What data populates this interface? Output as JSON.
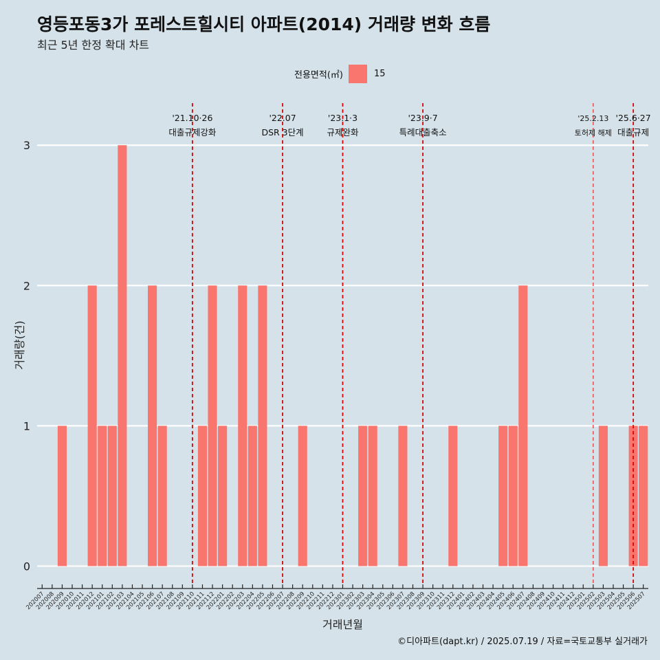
{
  "title": "영등포동3가 포레스트힐시티 아파트(2014) 거래량 변화 흐름",
  "subtitle": "최근 5년 한정 확대 차트",
  "legend": {
    "title": "전용면적(㎡)",
    "label": "15",
    "color": "#f8766d"
  },
  "footer": "©디아파트(dapt.kr) / 2025.07.19 / 자료=국토교통부 실거래가",
  "chart_data": {
    "type": "bar",
    "xlabel": "거래년월",
    "ylabel": "거래량(건)",
    "ylim": [
      -0.14,
      3.3
    ],
    "yticks": [
      0,
      1,
      2,
      3
    ],
    "grid": true,
    "legend_position": "top",
    "bar_color": "#f8766d",
    "categories": [
      "202007",
      "202008",
      "202009",
      "202010",
      "202011",
      "202012",
      "202101",
      "202102",
      "202103",
      "202104",
      "202105",
      "202106",
      "202107",
      "202108",
      "202109",
      "202110",
      "202111",
      "202112",
      "202201",
      "202202",
      "202203",
      "202204",
      "202205",
      "202206",
      "202207",
      "202208",
      "202209",
      "202210",
      "202211",
      "202212",
      "202301",
      "202302",
      "202303",
      "202304",
      "202305",
      "202306",
      "202307",
      "202308",
      "202309",
      "202310",
      "202311",
      "202312",
      "202401",
      "202402",
      "202403",
      "202404",
      "202405",
      "202406",
      "202407",
      "202408",
      "202409",
      "202410",
      "202411",
      "202412",
      "202501",
      "202502",
      "202503",
      "202504",
      "202505",
      "202506",
      "202507"
    ],
    "series": [
      {
        "name": "15",
        "values": [
          0,
          0,
          1,
          0,
          0,
          2,
          1,
          1,
          3,
          0,
          0,
          2,
          1,
          0,
          0,
          0,
          1,
          2,
          1,
          0,
          2,
          1,
          2,
          0,
          0,
          0,
          1,
          0,
          0,
          0,
          0,
          0,
          1,
          1,
          0,
          0,
          1,
          0,
          0,
          0,
          0,
          1,
          0,
          0,
          0,
          0,
          1,
          1,
          2,
          0,
          0,
          0,
          0,
          0,
          0,
          0,
          1,
          0,
          0,
          1,
          1
        ]
      }
    ],
    "annotations": [
      {
        "x": 15.5,
        "date": "'21.10·26",
        "text": "대출규제강화"
      },
      {
        "x": 24.5,
        "date": "'22.07",
        "text": "DSR 3단계"
      },
      {
        "x": 30.5,
        "date": "'23.1·3",
        "text": "규제완화"
      },
      {
        "x": 38.5,
        "date": "'23.9·7",
        "text": "특례대출축소"
      },
      {
        "x": 55.5,
        "date": "'25.2.13",
        "text": "토허제 해제"
      },
      {
        "x": 59.5,
        "date": "'25.6·27",
        "text": "대출규제"
      }
    ]
  }
}
